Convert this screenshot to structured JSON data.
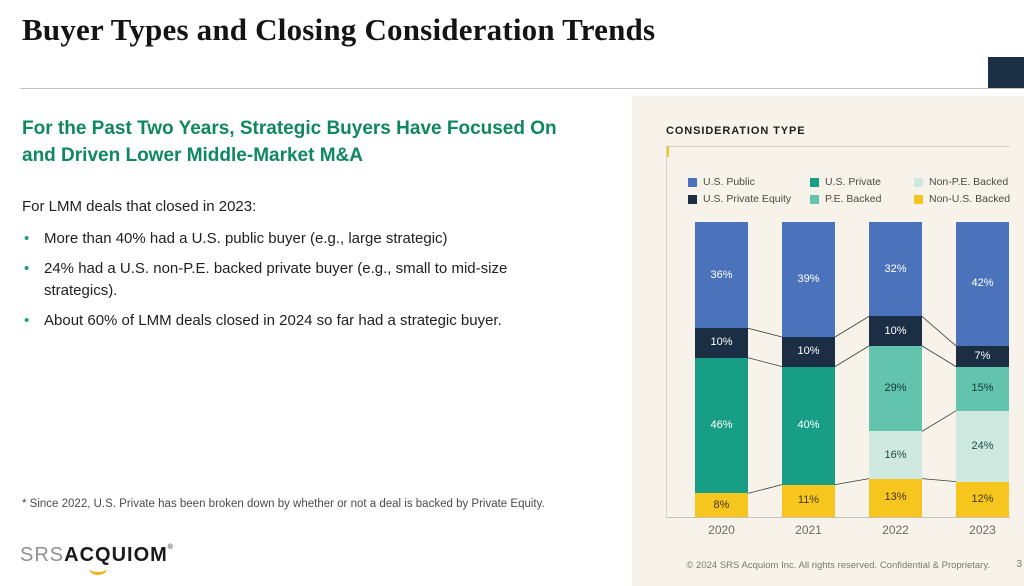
{
  "slide": {
    "title": "Buyer Types and Closing Consideration Trends",
    "accent_navy": "#1b2e44",
    "accent_gold": "#f5c51d",
    "heading_green": "#0f8761"
  },
  "left": {
    "heading": "For the Past Two Years, Strategic Buyers Have Focused On and Driven Lower Middle-Market M&A",
    "intro": "For LMM deals that closed in 2023:",
    "bullets": [
      "More than 40% had a U.S. public buyer (e.g., large strategic)",
      "24% had a U.S. non-P.E. backed private buyer (e.g., small to mid-size strategics).",
      "About 60% of LMM deals closed in 2024 so far had a strategic buyer."
    ],
    "footnote": "* Since 2022, U.S. Private has been broken down by whether or not a deal is backed by Private Equity.",
    "logo": {
      "srs": "SRS",
      "acquiom": "ACQUIOM",
      "reg": "®"
    }
  },
  "panel": {
    "header": "CONSIDERATION TYPE",
    "footer": "© 2024 SRS Acquiom Inc. All rights reserved. Confidential & Proprietary.",
    "page_number": "3",
    "background": "#f8f3ea"
  },
  "chart_data": {
    "type": "bar",
    "stacked": true,
    "percent_total": 100,
    "title": "CONSIDERATION TYPE",
    "categories": [
      "2020",
      "2021",
      "2022",
      "2023"
    ],
    "series": [
      {
        "name": "U.S. Public",
        "color": "#4b73bb",
        "text_color": "#ffffff",
        "values": [
          36,
          39,
          32,
          42
        ]
      },
      {
        "name": "U.S. Private Equity",
        "color": "#1b2e44",
        "text_color": "#ffffff",
        "values": [
          10,
          10,
          10,
          7
        ]
      },
      {
        "name": "U.S. Private",
        "color": "#179e85",
        "text_color": "#ffffff",
        "values": [
          46,
          40,
          null,
          null
        ]
      },
      {
        "name": "P.E. Backed",
        "color": "#63c4ae",
        "text_color": "#123b32",
        "values": [
          null,
          null,
          29,
          15
        ]
      },
      {
        "name": "Non-P.E. Backed",
        "color": "#cfe9e0",
        "text_color": "#1d4a40",
        "values": [
          null,
          null,
          16,
          24
        ]
      },
      {
        "name": "Non-U.S. Backed",
        "color": "#f6c51e",
        "text_color": "#453a08",
        "values": [
          8,
          11,
          13,
          12
        ]
      }
    ],
    "legend": [
      {
        "label": "U.S. Public",
        "color": "#4b73bb"
      },
      {
        "label": "U.S. Private",
        "color": "#179e85"
      },
      {
        "label": "Non-P.E. Backed",
        "color": "#cfe9e0"
      },
      {
        "label": "U.S. Private Equity",
        "color": "#1b2e44"
      },
      {
        "label": "P.E. Backed",
        "color": "#63c4ae"
      },
      {
        "label": "Non-U.S. Backed",
        "color": "#f6c51e"
      }
    ],
    "ylim": [
      0,
      100
    ],
    "value_suffix": "%",
    "legend_position": "top",
    "grid": false
  }
}
